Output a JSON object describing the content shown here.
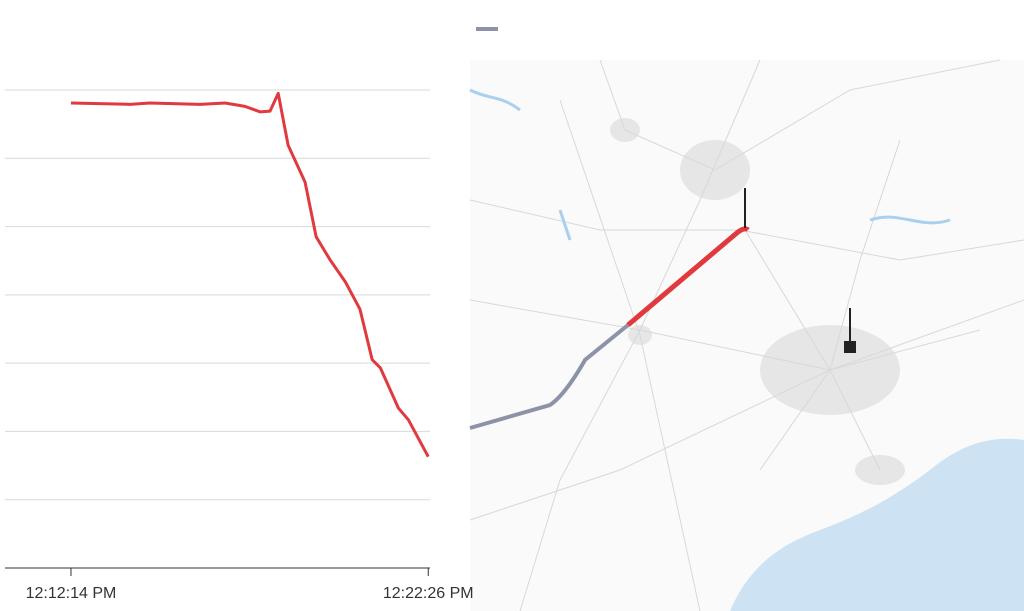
{
  "chart_data": {
    "type": "line",
    "x": [
      0,
      101,
      135,
      221,
      264,
      298,
      324,
      341,
      355,
      372,
      401,
      420,
      444,
      470,
      495,
      516,
      530,
      561,
      578,
      612
    ],
    "values": [
      6.81,
      6.79,
      6.81,
      6.79,
      6.81,
      6.76,
      6.68,
      6.69,
      6.95,
      6.19,
      5.65,
      4.85,
      4.51,
      4.19,
      3.79,
      3.05,
      2.93,
      2.34,
      2.17,
      1.63
    ],
    "color": "#e0393e",
    "xlim": [
      -113,
      615
    ],
    "xticks": [
      {
        "value": 0,
        "label": "12:12:14 PM"
      },
      {
        "value": 612,
        "label": "12:22:26 PM"
      }
    ],
    "ylim": [
      0,
      7
    ],
    "yticks": [
      1,
      2,
      3,
      4,
      5,
      6,
      7
    ],
    "grid": true
  }
}
